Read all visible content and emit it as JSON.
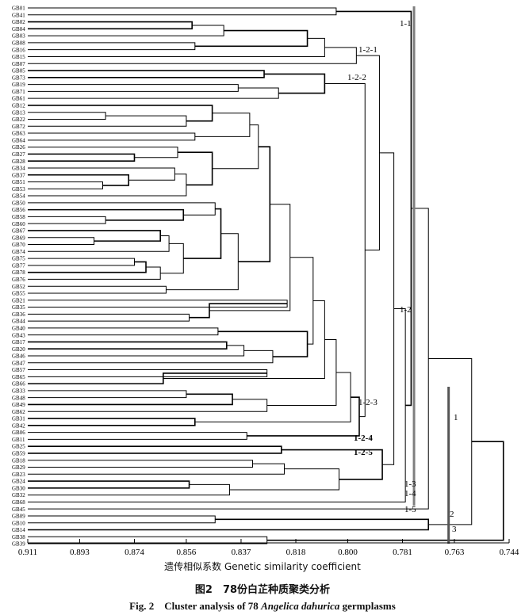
{
  "figure": {
    "axis_title": "遗传相似系数 Genetic similarity coefficient",
    "caption_cn": "图2　78份白芷种质聚类分析",
    "caption_en_prefix": "Fig. 2　Cluster analysis of 78 ",
    "caption_en_species": "Angelica dahurica",
    "caption_en_suffix": " germplasms"
  },
  "chart_data": {
    "type": "dendrogram",
    "title": "",
    "xlabel": "遗传相似系数 Genetic similarity coefficient",
    "x_axis_reversed": true,
    "xlim": [
      0.744,
      0.911
    ],
    "x_ticks": [
      "0.911",
      "0.893",
      "0.874",
      "0.856",
      "0.837",
      "0.818",
      "0.800",
      "0.781",
      "0.763",
      "0.744"
    ],
    "leaves": [
      "GB01",
      "GB41",
      "GB02",
      "GB04",
      "GB03",
      "GB08",
      "GB16",
      "GB15",
      "GB07",
      "GB05",
      "GB73",
      "GB19",
      "GB71",
      "GB61",
      "GB12",
      "GB13",
      "GB22",
      "GB72",
      "GB63",
      "GB64",
      "GB26",
      "GB27",
      "GB28",
      "GB34",
      "GB37",
      "GB51",
      "GB53",
      "GB54",
      "GB50",
      "GB56",
      "GB58",
      "GB60",
      "GB67",
      "GB69",
      "GB70",
      "GB74",
      "GB75",
      "GB77",
      "GB78",
      "GB76",
      "GB52",
      "GB55",
      "GB21",
      "GB35",
      "GB36",
      "GB44",
      "GB40",
      "GB43",
      "GB17",
      "GB20",
      "GB46",
      "GB47",
      "GB57",
      "GB65",
      "GB66",
      "GB33",
      "GB48",
      "GB49",
      "GB62",
      "GB31",
      "GB42",
      "GB06",
      "GB11",
      "GB25",
      "GB59",
      "GB18",
      "GB29",
      "GB23",
      "GB24",
      "GB30",
      "GB32",
      "GB68",
      "GB45",
      "GB09",
      "GB10",
      "GB14",
      "GB38",
      "GB39"
    ],
    "cluster_labels": [
      "1-1",
      "1-2-1",
      "1-2-2",
      "1-2",
      "1-2-3",
      "1-2-4",
      "1-2-5",
      "1-3",
      "1-4",
      "1-5",
      "1",
      "2",
      "3"
    ],
    "cut_lines": [
      {
        "similarity": 0.777,
        "color": "#7f7f7f"
      },
      {
        "similarity": 0.765,
        "color": "#555555"
      }
    ],
    "merges": [
      {
        "a": "GB01",
        "b": "GB41",
        "sim": 0.804
      },
      {
        "a": "GB02",
        "b": "GB04",
        "sim": 0.854
      },
      {
        "a": "GB02",
        "b": "GB03",
        "sim": 0.843
      },
      {
        "a": "GB08",
        "b": "GB16",
        "sim": 0.853
      },
      {
        "a": "GB02",
        "b": "GB08",
        "sim": 0.814
      },
      {
        "a": "GB02",
        "b": "GB15",
        "sim": 0.808
      },
      {
        "a": "GB02",
        "b": "GB07",
        "sim": 0.797
      },
      {
        "a": "GB05",
        "b": "GB73",
        "sim": 0.829
      },
      {
        "a": "GB19",
        "b": "GB71",
        "sim": 0.838
      },
      {
        "a": "GB19",
        "b": "GB61",
        "sim": 0.824
      },
      {
        "a": "GB05",
        "b": "GB19",
        "sim": 0.808
      },
      {
        "a": "GB13",
        "b": "GB22",
        "sim": 0.884
      },
      {
        "a": "GB13",
        "b": "GB72",
        "sim": 0.856
      },
      {
        "a": "GB13",
        "b": "GB12",
        "sim": 0.847
      },
      {
        "a": "GB63",
        "b": "GB64",
        "sim": 0.853
      },
      {
        "a": "GB12",
        "b": "GB63",
        "sim": 0.834
      },
      {
        "a": "GB27",
        "b": "GB28",
        "sim": 0.874
      },
      {
        "a": "GB26",
        "b": "GB27",
        "sim": 0.859
      },
      {
        "a": "GB51",
        "b": "GB53",
        "sim": 0.885
      },
      {
        "a": "GB37",
        "b": "GB51",
        "sim": 0.876
      },
      {
        "a": "GB34",
        "b": "GB37",
        "sim": 0.86
      },
      {
        "a": "GB34",
        "b": "GB54",
        "sim": 0.856
      },
      {
        "a": "GB26",
        "b": "GB34",
        "sim": 0.847
      },
      {
        "a": "GB12",
        "b": "GB26",
        "sim": 0.831
      },
      {
        "a": "GB58",
        "b": "GB60",
        "sim": 0.884
      },
      {
        "a": "GB56",
        "b": "GB58",
        "sim": 0.857
      },
      {
        "a": "GB50",
        "b": "GB56",
        "sim": 0.846
      },
      {
        "a": "GB69",
        "b": "GB70",
        "sim": 0.888
      },
      {
        "a": "GB67",
        "b": "GB69",
        "sim": 0.865
      },
      {
        "a": "GB67",
        "b": "GB74",
        "sim": 0.862
      },
      {
        "a": "GB75",
        "b": "GB77",
        "sim": 0.874
      },
      {
        "a": "GB75",
        "b": "GB78",
        "sim": 0.87
      },
      {
        "a": "GB75",
        "b": "GB76",
        "sim": 0.865
      },
      {
        "a": "GB67",
        "b": "GB75",
        "sim": 0.857
      },
      {
        "a": "GB50",
        "b": "GB67",
        "sim": 0.844
      },
      {
        "a": "GB52",
        "b": "GB55",
        "sim": 0.863
      },
      {
        "a": "GB50",
        "b": "GB52",
        "sim": 0.838
      },
      {
        "a": "GB12",
        "b": "GB50",
        "sim": 0.827
      },
      {
        "a": "GB21",
        "b": "GB35",
        "sim": 0.821
      },
      {
        "a": "GB36",
        "b": "GB44",
        "sim": 0.855
      },
      {
        "a": "GB35",
        "b": "GB36",
        "sim": 0.848
      },
      {
        "a": "GB12",
        "b": "GB21",
        "sim": 0.82
      },
      {
        "a": "GB40",
        "b": "GB43",
        "sim": 0.845
      },
      {
        "a": "GB17",
        "b": "GB20",
        "sim": 0.842
      },
      {
        "a": "GB17",
        "b": "GB46",
        "sim": 0.836
      },
      {
        "a": "GB17",
        "b": "GB47",
        "sim": 0.826
      },
      {
        "a": "GB40",
        "b": "GB17",
        "sim": 0.814
      },
      {
        "a": "GB12",
        "b": "GB40",
        "sim": 0.812
      },
      {
        "a": "GB57",
        "b": "GB65",
        "sim": 0.828
      },
      {
        "a": "GB65",
        "b": "GB66",
        "sim": 0.864
      },
      {
        "a": "GB12",
        "b": "GB57",
        "sim": 0.808
      },
      {
        "a": "GB33",
        "b": "GB48",
        "sim": 0.856
      },
      {
        "a": "GB48",
        "b": "GB49",
        "sim": 0.84
      },
      {
        "a": "GB48",
        "b": "GB62",
        "sim": 0.828
      },
      {
        "a": "GB12",
        "b": "GB33",
        "sim": 0.804
      },
      {
        "a": "GB31",
        "b": "GB42",
        "sim": 0.853
      },
      {
        "a": "GB12",
        "b": "GB31",
        "sim": 0.799
      },
      {
        "a": "GB06",
        "b": "GB11",
        "sim": 0.835
      },
      {
        "a": "GB12",
        "b": "GB06",
        "sim": 0.796
      },
      {
        "a": "GB05",
        "b": "GB12",
        "sim": 0.794
      },
      {
        "a": "GB02",
        "b": "GB05",
        "sim": 0.789
      },
      {
        "a": "GB25",
        "b": "GB59",
        "sim": 0.823
      },
      {
        "a": "GB18",
        "b": "GB29",
        "sim": 0.833
      },
      {
        "a": "GB18",
        "b": "GB23",
        "sim": 0.822
      },
      {
        "a": "GB24",
        "b": "GB30",
        "sim": 0.855
      },
      {
        "a": "GB30",
        "b": "GB32",
        "sim": 0.841
      },
      {
        "a": "GB18",
        "b": "GB24",
        "sim": 0.803
      },
      {
        "a": "GB25",
        "b": "GB18",
        "sim": 0.788
      },
      {
        "a": "GB02",
        "b": "GB25",
        "sim": 0.784
      },
      {
        "a": "GB02",
        "b": "GB68",
        "sim": 0.78
      },
      {
        "a": "GB01",
        "b": "GB02",
        "sim": 0.778
      },
      {
        "a": "GB01",
        "b": "GB45",
        "sim": 0.772
      },
      {
        "a": "GB09",
        "b": "GB10",
        "sim": 0.846
      },
      {
        "a": "GB09",
        "b": "GB14",
        "sim": 0.772
      },
      {
        "a": "GB01",
        "b": "GB09",
        "sim": 0.757
      },
      {
        "a": "GB38",
        "b": "GB39",
        "sim": 0.828
      },
      {
        "a": "GB01",
        "b": "GB38",
        "sim": 0.746
      }
    ]
  }
}
